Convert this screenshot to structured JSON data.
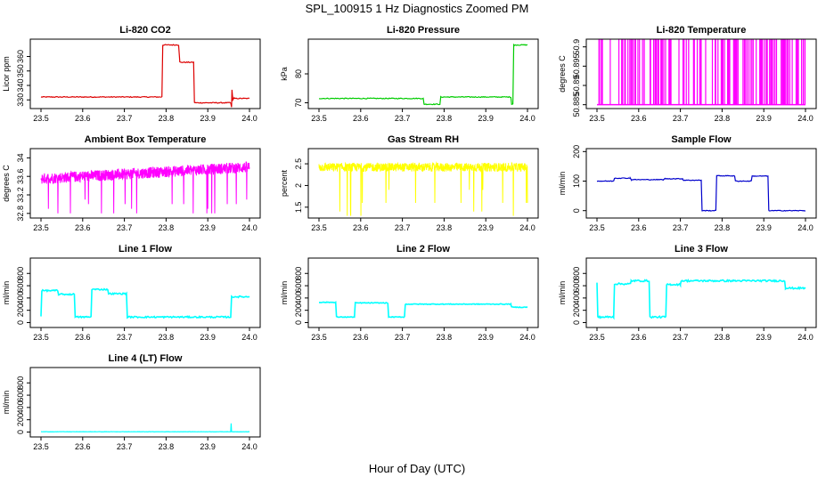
{
  "figure": {
    "title": "SPL_100915  1 Hz Diagnostics Zoomed PM",
    "xlabel": "Hour of Day (UTC)"
  },
  "chart_data": [
    {
      "id": "co2",
      "type": "line",
      "title": "Li-820 CO2",
      "ylabel": "Licor ppm",
      "color": "#dd0000",
      "xlim": [
        23.5,
        24.0
      ],
      "xticks": [
        23.5,
        23.6,
        23.7,
        23.8,
        23.9,
        24.0
      ],
      "ylim": [
        324,
        372
      ],
      "yticks": [
        330,
        340,
        350,
        360
      ],
      "noise": 0.3,
      "x": [
        23.5,
        23.79,
        23.792,
        23.83,
        23.833,
        23.866,
        23.868,
        23.955,
        23.957,
        23.958,
        23.96,
        23.962,
        23.964,
        24.0
      ],
      "y": [
        332,
        332,
        368,
        368,
        356,
        356,
        328,
        328,
        325,
        337,
        330,
        331,
        331,
        331
      ]
    },
    {
      "id": "pressure",
      "type": "line",
      "title": "Li-820 Pressure",
      "ylabel": "kPa",
      "color": "#00cc00",
      "xlim": [
        23.5,
        24.0
      ],
      "xticks": [
        23.5,
        23.6,
        23.7,
        23.8,
        23.9,
        24.0
      ],
      "ylim": [
        68,
        92
      ],
      "yticks": [
        70,
        80
      ],
      "noise": 0.15,
      "x": [
        23.5,
        23.75,
        23.752,
        23.79,
        23.792,
        23.96,
        23.962,
        23.965,
        23.967,
        24.0
      ],
      "y": [
        71.5,
        71.5,
        69.5,
        69.5,
        72,
        72,
        69.5,
        69.5,
        90,
        90
      ]
    },
    {
      "id": "licor_temp",
      "type": "spikes",
      "title": "Li-820 Temperature",
      "ylabel": "degrees C",
      "color": "#ff00ff",
      "xlim": [
        23.5,
        24.0
      ],
      "xticks": [
        23.5,
        23.6,
        23.7,
        23.8,
        23.9,
        24.0
      ],
      "ylim": [
        50.884,
        50.902
      ],
      "yticks": [
        50.885,
        50.89,
        50.895,
        50.9
      ],
      "low": 50.885,
      "high": 50.902
    },
    {
      "id": "box_temp",
      "type": "noisy",
      "title": "Ambient Box Temperature",
      "ylabel": "degrees C",
      "color": "#ff00ff",
      "xlim": [
        23.5,
        24.0
      ],
      "xticks": [
        23.5,
        23.6,
        23.7,
        23.8,
        23.9,
        24.0
      ],
      "ylim": [
        32.7,
        34.2
      ],
      "yticks": [
        32.8,
        33.2,
        33.6,
        34.0
      ],
      "base_start": 33.55,
      "base_end": 33.8,
      "spread": 0.12,
      "dips": [
        32.8,
        32.9,
        33.0,
        33.1
      ],
      "x": [
        23.5,
        24.0
      ]
    },
    {
      "id": "rh",
      "type": "noisy",
      "title": "Gas Stream RH",
      "ylabel": "percent",
      "color": "#ffff00",
      "xlim": [
        23.5,
        24.0
      ],
      "xticks": [
        23.5,
        23.6,
        23.7,
        23.8,
        23.9,
        24.0
      ],
      "ylim": [
        1.25,
        2.85
      ],
      "yticks": [
        1.5,
        2.0,
        2.5
      ],
      "base_start": 2.42,
      "base_end": 2.42,
      "spread": 0.1,
      "dips": [
        1.3,
        1.4,
        1.6,
        1.9
      ],
      "x": [
        23.5,
        24.0
      ]
    },
    {
      "id": "sample_flow",
      "type": "line",
      "title": "Sample Flow",
      "ylabel": "ml/min",
      "color": "#0000cc",
      "xlim": [
        23.5,
        24.0
      ],
      "xticks": [
        23.5,
        23.6,
        23.7,
        23.8,
        23.9,
        24.0
      ],
      "ylim": [
        -25,
        210
      ],
      "yticks": [
        0,
        100,
        200
      ],
      "noise": 1.2,
      "x": [
        23.5,
        23.54,
        23.542,
        23.58,
        23.582,
        23.66,
        23.662,
        23.705,
        23.707,
        23.75,
        23.752,
        23.785,
        23.787,
        23.83,
        23.832,
        23.87,
        23.872,
        23.91,
        23.912,
        24.0
      ],
      "y": [
        100,
        100,
        110,
        110,
        105,
        105,
        108,
        108,
        103,
        103,
        0,
        0,
        118,
        118,
        100,
        100,
        117,
        117,
        0,
        0
      ]
    },
    {
      "id": "line1",
      "type": "line",
      "title": "Line 1 Flow",
      "ylabel": "ml/min",
      "color": "#00ffff",
      "xlim": [
        23.5,
        24.0
      ],
      "xticks": [
        23.5,
        23.6,
        23.7,
        23.8,
        23.9,
        24.0
      ],
      "ylim": [
        -80,
        1050
      ],
      "yticks": [
        0,
        200,
        400,
        600,
        800
      ],
      "noise": 12,
      "x": [
        23.5,
        23.502,
        23.54,
        23.542,
        23.58,
        23.582,
        23.62,
        23.622,
        23.66,
        23.662,
        23.705,
        23.707,
        23.955,
        23.957,
        24.0
      ],
      "y": [
        100,
        520,
        520,
        460,
        460,
        90,
        90,
        540,
        540,
        470,
        470,
        90,
        90,
        420,
        420
      ]
    },
    {
      "id": "line2",
      "type": "line",
      "title": "Line 2 Flow",
      "ylabel": "ml/min",
      "color": "#00ffff",
      "xlim": [
        23.5,
        24.0
      ],
      "xticks": [
        23.5,
        23.6,
        23.7,
        23.8,
        23.9,
        24.0
      ],
      "ylim": [
        -80,
        1050
      ],
      "yticks": [
        0,
        200,
        400,
        600,
        800
      ],
      "noise": 6,
      "x": [
        23.5,
        23.54,
        23.542,
        23.585,
        23.587,
        23.665,
        23.667,
        23.705,
        23.707,
        23.96,
        23.962,
        24.0
      ],
      "y": [
        330,
        330,
        90,
        90,
        320,
        320,
        90,
        90,
        300,
        300,
        250,
        250
      ]
    },
    {
      "id": "line3",
      "type": "line",
      "title": "Line 3 Flow",
      "ylabel": "ml/min",
      "color": "#00ffff",
      "xlim": [
        23.5,
        24.0
      ],
      "xticks": [
        23.5,
        23.6,
        23.7,
        23.8,
        23.9,
        24.0
      ],
      "ylim": [
        -80,
        1050
      ],
      "yticks": [
        0,
        200,
        400,
        600,
        800
      ],
      "noise": 14,
      "x": [
        23.5,
        23.502,
        23.504,
        23.54,
        23.542,
        23.58,
        23.582,
        23.625,
        23.627,
        23.665,
        23.667,
        23.7,
        23.702,
        23.95,
        23.952,
        24.0
      ],
      "y": [
        650,
        90,
        90,
        90,
        630,
        630,
        680,
        680,
        90,
        90,
        620,
        620,
        680,
        680,
        560,
        560
      ]
    },
    {
      "id": "line4",
      "type": "line",
      "title": "Line 4 (LT) Flow",
      "ylabel": "ml/min",
      "color": "#00ffff",
      "xlim": [
        23.5,
        24.0
      ],
      "xticks": [
        23.5,
        23.6,
        23.7,
        23.8,
        23.9,
        24.0
      ],
      "ylim": [
        -80,
        1050
      ],
      "yticks": [
        0,
        200,
        400,
        600,
        800
      ],
      "noise": 2,
      "x": [
        23.5,
        23.955,
        23.956,
        23.957,
        23.958,
        24.0
      ],
      "y": [
        5,
        5,
        140,
        5,
        5,
        5
      ]
    }
  ]
}
